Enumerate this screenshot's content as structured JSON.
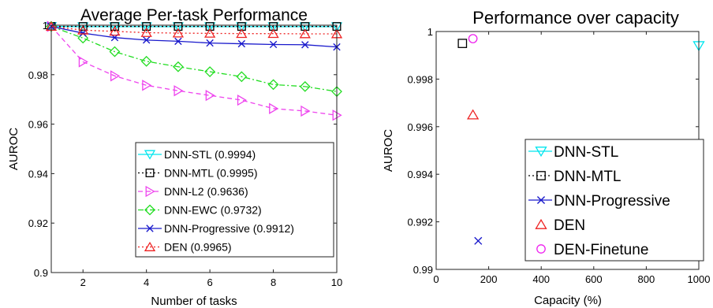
{
  "chart_data": [
    {
      "type": "line",
      "title": "Average Per-task Performance",
      "xlabel": "Number of tasks",
      "ylabel": "AUROC",
      "xlim": [
        1,
        10
      ],
      "ylim": [
        0.9,
        1.0
      ],
      "xticks": [
        2,
        4,
        6,
        8,
        10
      ],
      "xtick_labels": [
        "2",
        "4",
        "6",
        "8",
        "10"
      ],
      "yticks": [
        0.9,
        0.92,
        0.94,
        0.96,
        0.98,
        1.0
      ],
      "ytick_labels": [
        "0.9",
        "0.92",
        "0.94",
        "0.96",
        "0.98",
        "1"
      ],
      "grid": false,
      "legend_position": "bottom-right",
      "x": [
        1,
        2,
        3,
        4,
        5,
        6,
        7,
        8,
        9,
        10
      ],
      "series": [
        {
          "name": "DNN-STL (0.9994)",
          "color": "#00e5ee",
          "marker": "triangle-down",
          "dash": "solid",
          "values": [
            0.9995,
            0.9994,
            0.9994,
            0.9994,
            0.9994,
            0.9994,
            0.9994,
            0.9994,
            0.9994,
            0.9994
          ]
        },
        {
          "name": "DNN-MTL (0.9995)",
          "color": "#000000",
          "marker": "square",
          "dash": "dotted",
          "values": [
            0.9995,
            0.9995,
            0.9995,
            0.9995,
            0.9995,
            0.9995,
            0.9995,
            0.9995,
            0.9995,
            0.9995
          ]
        },
        {
          "name": "DNN-L2 (0.9636)",
          "color": "#ee44ee",
          "marker": "triangle-right",
          "dash": "dashed",
          "values": [
            0.9995,
            0.9852,
            0.9795,
            0.9757,
            0.9735,
            0.9716,
            0.9697,
            0.9663,
            0.9653,
            0.9636
          ]
        },
        {
          "name": "DNN-EWC (0.9732)",
          "color": "#22dd22",
          "marker": "diamond",
          "dash": "dashdot",
          "values": [
            0.9995,
            0.9948,
            0.9893,
            0.9854,
            0.9832,
            0.9812,
            0.9792,
            0.976,
            0.9752,
            0.9732
          ]
        },
        {
          "name": "DNN-Progressive (0.9912)",
          "color": "#1a1acc",
          "marker": "x",
          "dash": "solid",
          "values": [
            0.9995,
            0.9968,
            0.995,
            0.994,
            0.9935,
            0.9928,
            0.9925,
            0.9922,
            0.9921,
            0.9912
          ]
        },
        {
          "name": "DEN (0.9965)",
          "color": "#ee2222",
          "marker": "triangle-up",
          "dash": "dotted",
          "values": [
            0.9995,
            0.998,
            0.9975,
            0.997,
            0.9968,
            0.9967,
            0.9966,
            0.9966,
            0.9965,
            0.9965
          ]
        }
      ]
    },
    {
      "type": "scatter",
      "title": "Performance over capacity",
      "xlabel": "Capacity (%)",
      "ylabel": "AUROC",
      "xlim": [
        0,
        1000
      ],
      "ylim": [
        0.99,
        1.0
      ],
      "xticks": [
        0,
        200,
        400,
        600,
        800,
        1000
      ],
      "xtick_labels": [
        "0",
        "200",
        "400",
        "600",
        "800",
        "1000"
      ],
      "yticks": [
        0.99,
        0.992,
        0.994,
        0.996,
        0.998,
        1.0
      ],
      "ytick_labels": [
        "0.99",
        "0.992",
        "0.994",
        "0.996",
        "0.998",
        "1"
      ],
      "grid": false,
      "legend_position": "bottom-right",
      "series": [
        {
          "name": "DNN-STL",
          "color": "#00e5ee",
          "marker": "triangle-down",
          "dash": "solid",
          "x": 1000,
          "y": 0.9994
        },
        {
          "name": "DNN-MTL",
          "color": "#000000",
          "marker": "square",
          "dash": "dotted",
          "x": 100,
          "y": 0.9995
        },
        {
          "name": "DNN-Progressive",
          "color": "#1a1acc",
          "marker": "x",
          "dash": "solid",
          "x": 160,
          "y": 0.9912
        },
        {
          "name": "DEN",
          "color": "#ee2222",
          "marker": "triangle-up",
          "dash": "none",
          "x": 140,
          "y": 0.9965
        },
        {
          "name": "DEN-Finetune",
          "color": "#ee22ee",
          "marker": "circle",
          "dash": "none",
          "x": 140,
          "y": 0.9997
        }
      ]
    }
  ]
}
